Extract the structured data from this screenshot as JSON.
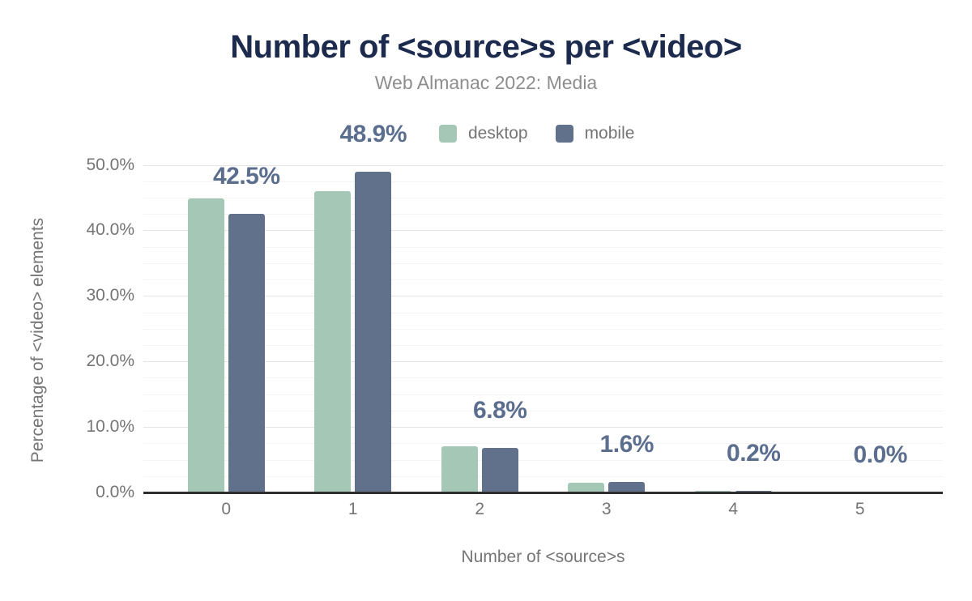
{
  "header": {
    "title": "Number of <source>s per <video>",
    "subtitle": "Web Almanac 2022: Media"
  },
  "legend": {
    "items": [
      {
        "label": "desktop",
        "color": "#a5c8b6"
      },
      {
        "label": "mobile",
        "color": "#61718b"
      }
    ]
  },
  "chart_data": {
    "type": "bar",
    "title": "Number of <source>s per <video>",
    "subtitle": "Web Almanac 2022: Media",
    "categories": [
      "0",
      "1",
      "2",
      "3",
      "4",
      "5"
    ],
    "series": [
      {
        "name": "desktop",
        "color": "#a5c8b6",
        "values": [
          44.9,
          46.0,
          7.0,
          1.5,
          0.2,
          0.0
        ]
      },
      {
        "name": "mobile",
        "color": "#61718b",
        "values": [
          42.5,
          48.9,
          6.8,
          1.6,
          0.2,
          0.0
        ]
      }
    ],
    "data_labels": [
      "42.5%",
      "48.9%",
      "6.8%",
      "1.6%",
      "0.2%",
      "0.0%"
    ],
    "data_labels_series": "mobile",
    "xlabel": "Number of <source>s",
    "ylabel": "Percentage of <video> elements",
    "yticks": [
      "0.0%",
      "10.0%",
      "20.0%",
      "30.0%",
      "40.0%",
      "50.0%"
    ],
    "ytick_values": [
      0,
      10,
      20,
      30,
      40,
      50
    ],
    "ylim": [
      0,
      50
    ],
    "grid": {
      "major_step": 10,
      "minor_step": 2.5,
      "minor_max": 50
    },
    "legend_position": "top"
  },
  "colors": {
    "title": "#1b2a4d",
    "subtitle": "#8d8d8d",
    "axis_text": "#757575",
    "data_label": "#5b6e8e",
    "axis_line": "#2e2e2e",
    "grid_major": "#e4e4e4",
    "grid_minor": "#f4f4f4",
    "background": "#ffffff"
  }
}
